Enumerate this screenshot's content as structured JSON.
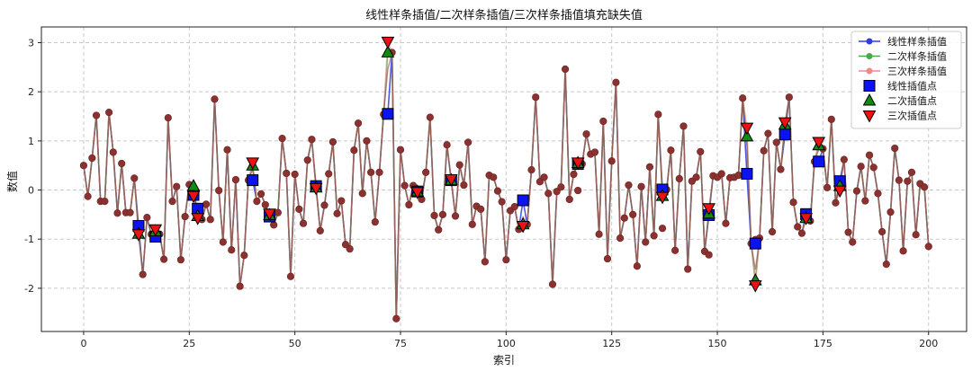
{
  "chart_data": {
    "type": "line",
    "title": "线性样条插值/二次样条插值/三次样条插值填充缺失值",
    "xlabel": "索引",
    "ylabel": "数值",
    "xlim": [
      -10,
      209
    ],
    "ylim": [
      -2.88,
      3.32
    ],
    "xticks": [
      0,
      25,
      50,
      75,
      100,
      125,
      150,
      175,
      200
    ],
    "yticks": [
      -2,
      -1,
      0,
      1,
      2,
      3
    ],
    "grid": true,
    "legend_position": "top-right",
    "colors": {
      "linear": "#2d3be8",
      "quadratic": "#4aa84a",
      "cubic": "#f08a8a",
      "overlap_line": "#7a3a36",
      "marker_fill": "#8b3230",
      "linear_point": "#0b14f0",
      "quadratic_point": "#118a11",
      "cubic_point": "#ee1111"
    },
    "series": [
      {
        "name": "线性样条插值",
        "style": "line-marker-circle",
        "color_key": "linear"
      },
      {
        "name": "二次样条插值",
        "style": "line-marker-circle",
        "color_key": "quadratic"
      },
      {
        "name": "三次样条插值",
        "style": "line-marker-circle",
        "color_key": "cubic"
      },
      {
        "name": "线性插值点",
        "style": "square",
        "color_key": "linear_point"
      },
      {
        "name": "二次插值点",
        "style": "triangle-up",
        "color_key": "quadratic_point"
      },
      {
        "name": "三次插值点",
        "style": "triangle-down",
        "color_key": "cubic_point"
      }
    ],
    "values": [
      0.5,
      -0.13,
      0.65,
      1.52,
      -0.23,
      -0.23,
      1.58,
      0.77,
      -0.47,
      0.54,
      -0.46,
      -0.46,
      0.24,
      -0.78,
      -1.72,
      -0.56,
      -0.9,
      -0.84,
      -0.9,
      -1.41,
      1.47,
      -0.23,
      0.07,
      -1.42,
      -0.54,
      0.11,
      -0.1,
      -0.47,
      -0.6,
      -0.29,
      -0.6,
      1.85,
      -0.01,
      -1.06,
      0.82,
      -1.22,
      0.21,
      -1.96,
      -1.33,
      0.2,
      0.5,
      -0.23,
      -0.08,
      -0.3,
      -0.51,
      -0.71,
      -0.46,
      1.05,
      0.34,
      -1.76,
      0.32,
      -0.39,
      -0.68,
      0.61,
      1.03,
      0.05,
      -0.83,
      -0.31,
      0.33,
      0.98,
      -0.48,
      -0.22,
      -1.11,
      -1.2,
      0.81,
      1.36,
      -0.07,
      1.0,
      0.36,
      -0.65,
      0.36,
      1.54,
      1.55,
      2.8,
      -2.62,
      0.82,
      0.09,
      -0.3,
      0.09,
      -0.03,
      -0.19,
      0.36,
      1.48,
      -0.52,
      -0.81,
      -0.5,
      0.92,
      0.2,
      -0.53,
      0.51,
      0.1,
      0.97,
      -0.7,
      -0.33,
      -0.39,
      -1.46,
      0.3,
      0.26,
      -0.02,
      -0.24,
      -1.42,
      -0.42,
      -0.34,
      -0.8,
      -0.21,
      -0.7,
      0.41,
      1.89,
      0.17,
      0.26,
      -0.07,
      -1.92,
      -0.03,
      0.06,
      2.46,
      -0.19,
      0.32,
      -0.01,
      0.53,
      1.14,
      0.73,
      0.77,
      -0.9,
      1.4,
      -1.4,
      0.59,
      2.19,
      -0.98,
      -0.57,
      0.1,
      -0.5,
      -1.55,
      0.07,
      -1.06,
      0.47,
      -0.93,
      1.54,
      -0.78,
      0.01,
      0.81,
      -1.23,
      0.23,
      1.3,
      -1.61,
      0.18,
      0.26,
      0.78,
      -1.25,
      -1.32,
      0.29,
      0.26,
      0.33,
      -0.68,
      0.25,
      0.26,
      0.3,
      1.87,
      0.33,
      -1.09,
      -1.01,
      -0.98,
      0.8,
      1.15,
      -0.85,
      0.97,
      0.42,
      1.13,
      1.89,
      -0.25,
      -0.75,
      -0.88,
      -0.51,
      -0.63,
      0.58,
      0.9,
      0.84,
      0.05,
      1.44,
      -0.26,
      0.18,
      0.62,
      -0.86,
      -1.06,
      -0.02,
      0.48,
      -0.22,
      0.71,
      0.46,
      -0.07,
      -0.85,
      -1.51,
      -0.45,
      0.85,
      0.2,
      -1.24,
      0.18,
      0.36,
      -0.91,
      0.13,
      0.06,
      -1.15
    ],
    "interpolated_points": [
      {
        "x": 13,
        "linear": -0.73,
        "quadratic": -0.89,
        "cubic": -0.9
      },
      {
        "x": 17,
        "linear": -0.95,
        "quadratic": -0.84,
        "cubic": -0.8
      },
      {
        "x": 26,
        "linear": -0.1,
        "quadratic": 0.08,
        "cubic": -0.12
      },
      {
        "x": 27,
        "linear": -0.38,
        "quadratic": -0.53,
        "cubic": -0.57
      },
      {
        "x": 40,
        "linear": 0.2,
        "quadratic": 0.5,
        "cubic": 0.56
      },
      {
        "x": 44,
        "linear": -0.54,
        "quadratic": -0.51,
        "cubic": -0.48
      },
      {
        "x": 55,
        "linear": 0.08,
        "quadratic": 0.05,
        "cubic": 0.04
      },
      {
        "x": 72,
        "linear": 1.55,
        "quadratic": 2.8,
        "cubic": 3.02
      },
      {
        "x": 79,
        "linear": -0.03,
        "quadratic": -0.03,
        "cubic": -0.04
      },
      {
        "x": 87,
        "linear": 0.2,
        "quadratic": 0.2,
        "cubic": 0.22
      },
      {
        "x": 104,
        "linear": -0.21,
        "quadratic": -0.7,
        "cubic": -0.73
      },
      {
        "x": 117,
        "linear": 0.53,
        "quadratic": 0.55,
        "cubic": 0.56
      },
      {
        "x": 137,
        "linear": 0.01,
        "quadratic": -0.12,
        "cubic": -0.14
      },
      {
        "x": 148,
        "linear": -0.51,
        "quadratic": -0.48,
        "cubic": -0.37
      },
      {
        "x": 157,
        "linear": 0.33,
        "quadratic": 1.09,
        "cubic": 1.27
      },
      {
        "x": 159,
        "linear": -1.09,
        "quadratic": -1.84,
        "cubic": -1.94
      },
      {
        "x": 166,
        "linear": 1.13,
        "quadratic": 1.33,
        "cubic": 1.38
      },
      {
        "x": 171,
        "linear": -0.49,
        "quadratic": -0.57,
        "cubic": -0.57
      },
      {
        "x": 174,
        "linear": 0.58,
        "quadratic": 0.91,
        "cubic": 0.98
      },
      {
        "x": 179,
        "linear": 0.18,
        "quadratic": 0.08,
        "cubic": -0.01
      }
    ]
  }
}
